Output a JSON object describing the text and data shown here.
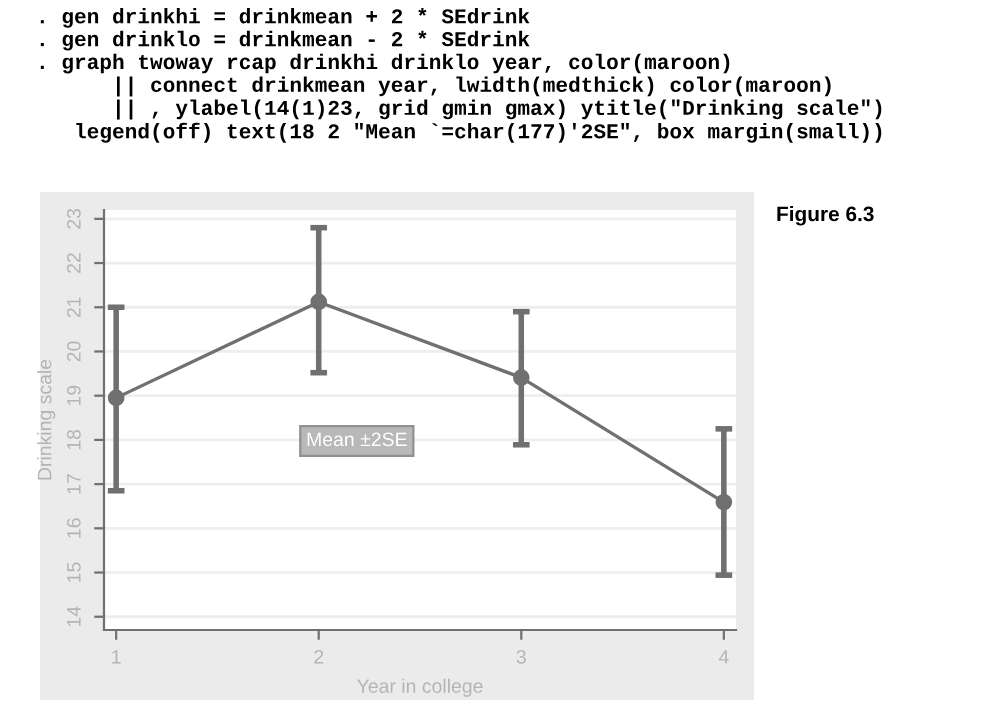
{
  "chart_data": {
    "type": "line",
    "xlabel": "Year in college",
    "ylabel": "Drinking scale",
    "x": [
      1,
      2,
      3,
      4
    ],
    "series": [
      {
        "color": "#707070",
        "values": [
          18.95,
          21.12,
          19.41,
          16.59
        ],
        "errors": [
          [
            16.85,
            21.0
          ],
          [
            19.52,
            22.8
          ],
          [
            17.89,
            20.9
          ],
          [
            14.94,
            18.25
          ]
        ]
      }
    ],
    "xlim": [
      0.94,
      4.06
    ],
    "xticks": [
      1,
      2,
      3,
      4
    ],
    "ylim": [
      13.7,
      23.2
    ],
    "yticks": [
      14,
      15,
      16,
      17,
      18,
      19,
      20,
      21,
      22,
      23
    ],
    "grid": "y",
    "marker": "circle",
    "line_style": "solid",
    "legend": false,
    "annotations": [
      ". gen drinkhi = drinkmean + 2 * SEdrink\n. gen drinklo = drinkmean - 2 * SEdrink\n. graph twoway rcap drinkhi drinklo year, color(maroon)\n      || connect drinkmean year, lwidth(medthick) color(maroon)\n      || , ylabel(14(1)23, grid gmin gmax) ytitle(\"Drinking scale\")\n   legend(off) text(18 2 \"Mean `=char(177)'2SE\", box margin(small))",
      "Figure 6.3",
      "Mean ±2SE"
    ]
  }
}
